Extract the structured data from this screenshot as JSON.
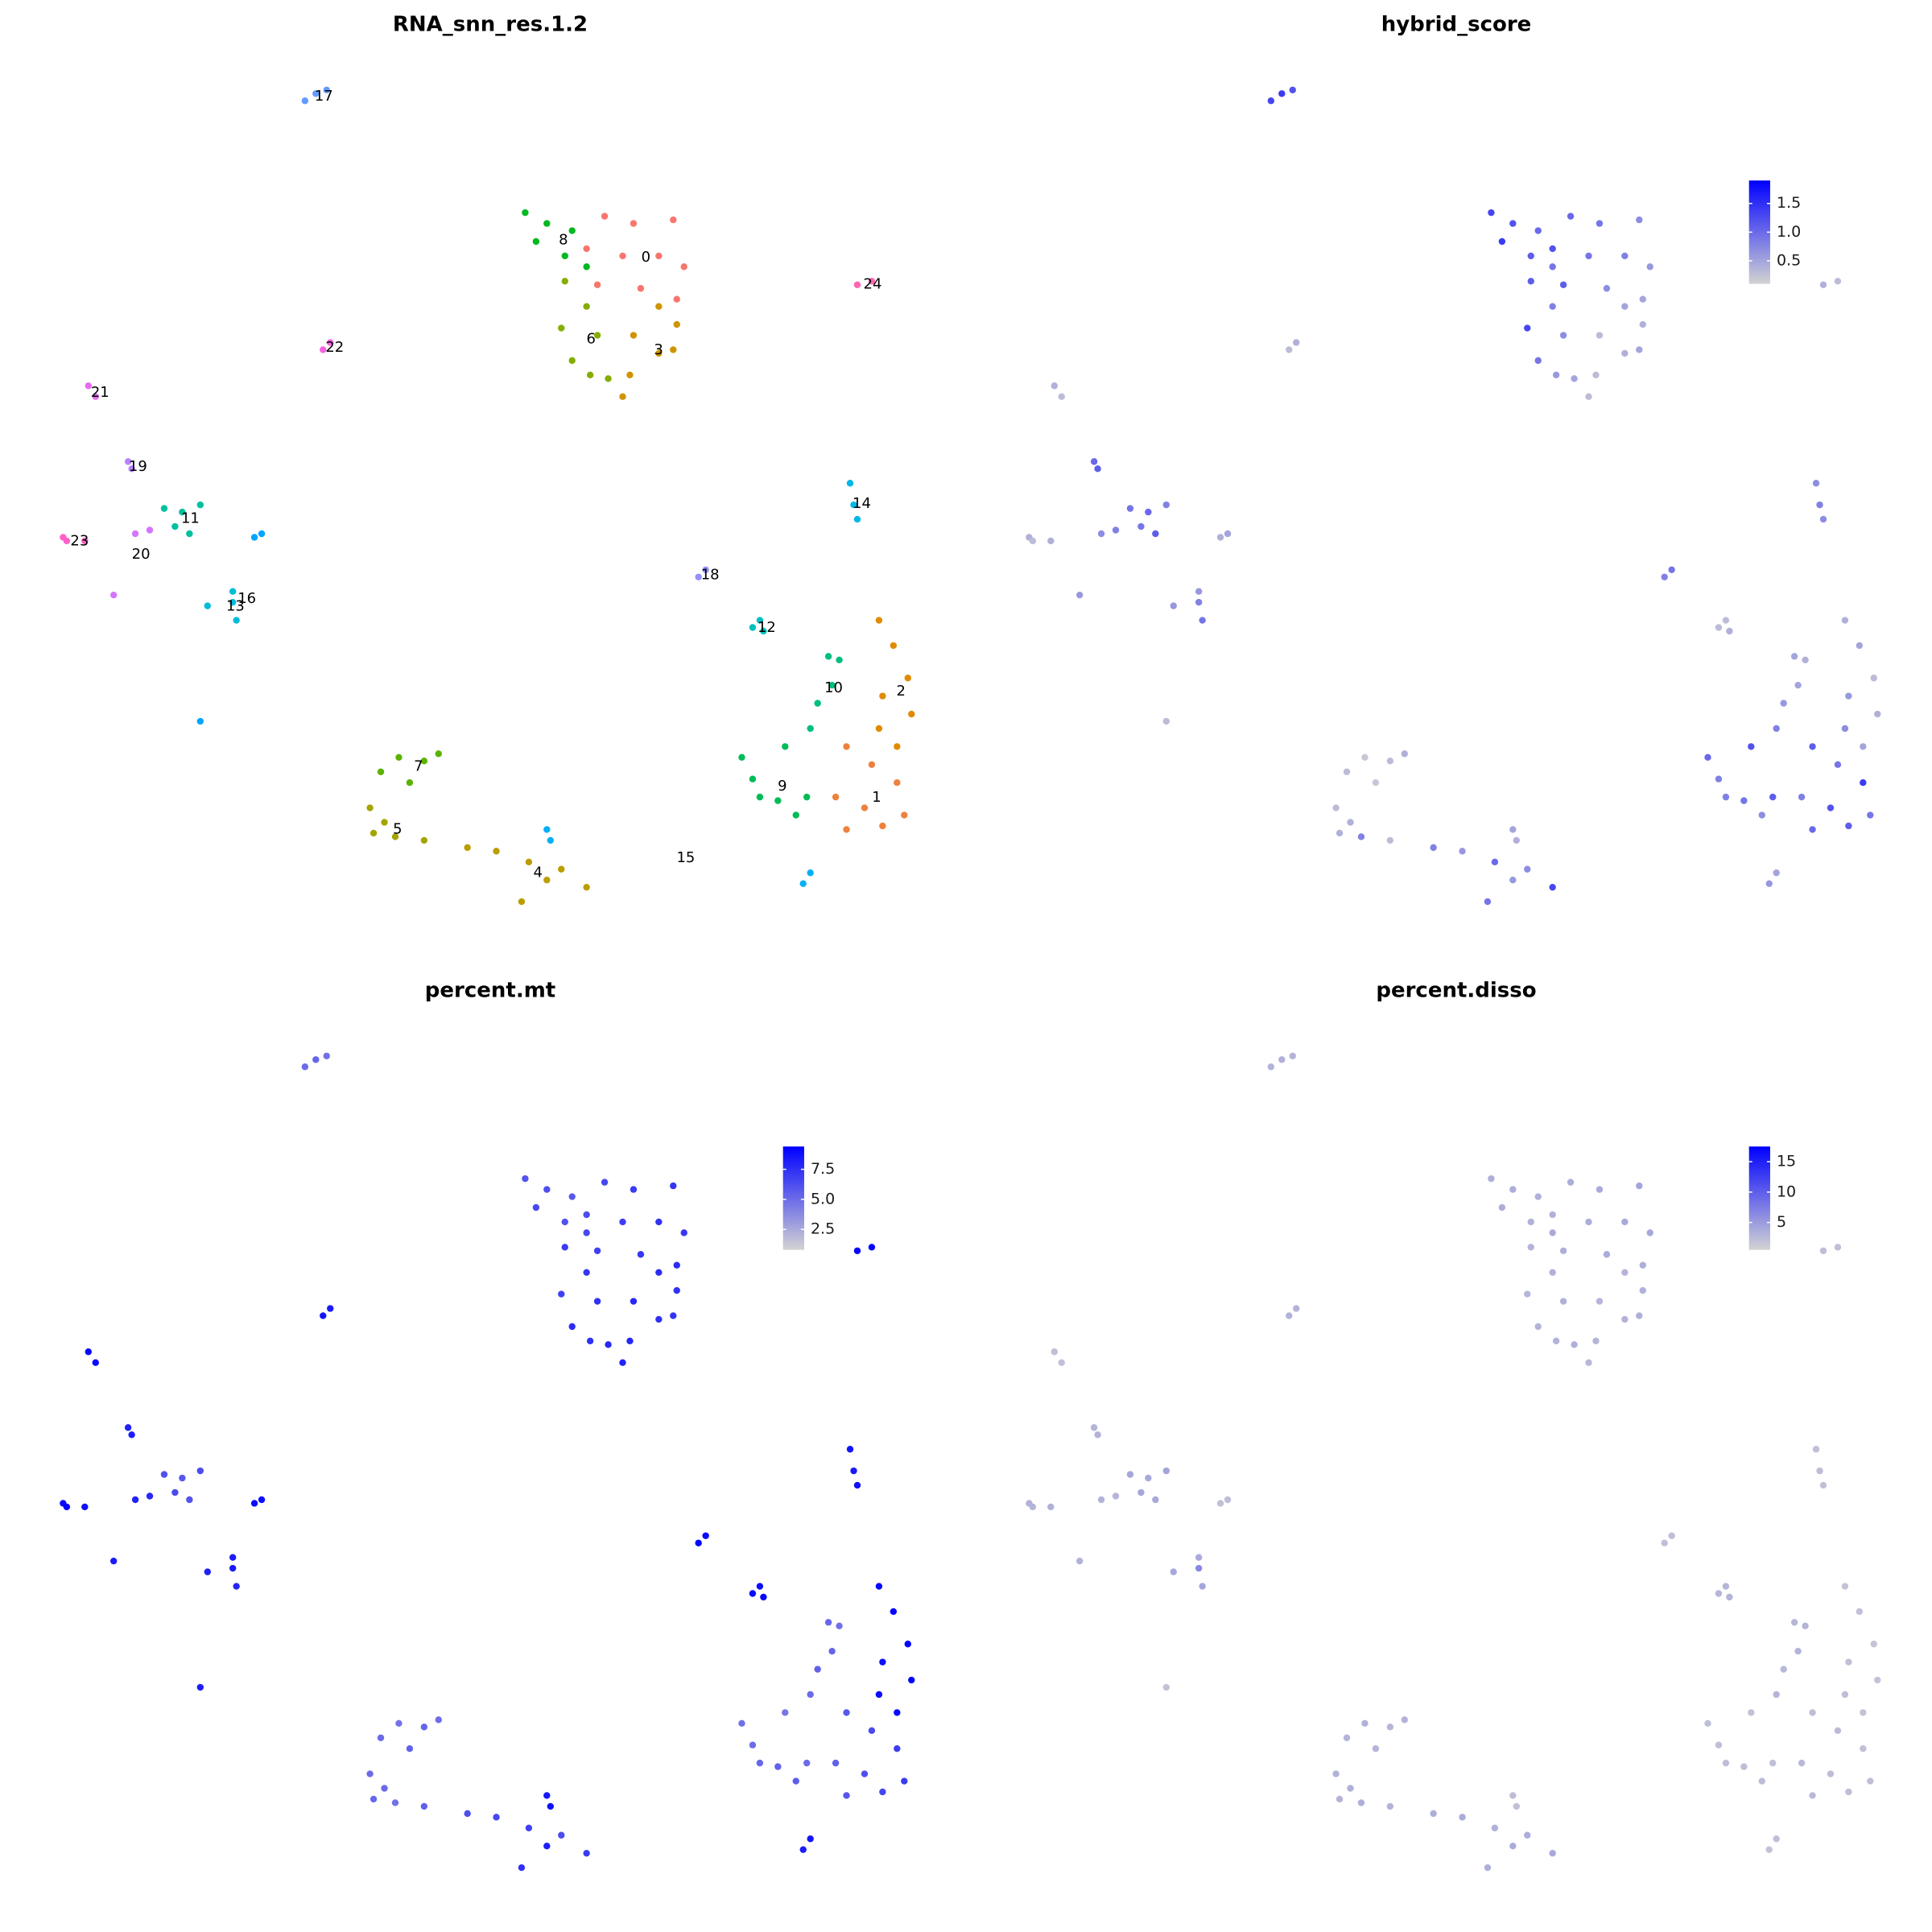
{
  "chart_data": [
    {
      "type": "cluster-scatter",
      "title": "RNA_snn_res.1.2",
      "xlim": [
        -13,
        13
      ],
      "ylim": [
        -12.5,
        12
      ],
      "series": [
        {
          "name": "0",
          "color": "#F8766D",
          "x": [
            3.3,
            4.1,
            5.2,
            2.8,
            3.8,
            4.8,
            5.5,
            3.1,
            4.3,
            5.3
          ],
          "y": [
            7.8,
            7.6,
            7.7,
            6.9,
            6.7,
            6.7,
            6.4,
            5.9,
            5.8,
            5.5
          ]
        },
        {
          "name": "1",
          "color": "#ED813E",
          "x": [
            10.0,
            10.7,
            11.4,
            9.7,
            10.5,
            11.6,
            10.0,
            11.0
          ],
          "y": [
            -6.9,
            -7.4,
            -7.9,
            -8.3,
            -8.6,
            -8.8,
            -9.2,
            -9.1
          ]
        },
        {
          "name": "2",
          "color": "#E08B00",
          "x": [
            10.9,
            11.3,
            11.7,
            11.0,
            11.8,
            10.9,
            11.4
          ],
          "y": [
            -3.4,
            -4.1,
            -5.0,
            -5.5,
            -6.0,
            -6.4,
            -6.9
          ]
        },
        {
          "name": "3",
          "color": "#CF9400",
          "x": [
            4.8,
            5.3,
            4.1,
            4.8,
            4.0,
            5.2,
            3.8
          ],
          "y": [
            5.3,
            4.8,
            4.5,
            4.0,
            3.4,
            4.1,
            2.8
          ]
        },
        {
          "name": "4",
          "color": "#BB9D00",
          "x": [
            -0.5,
            0.3,
            1.2,
            2.1,
            2.8,
            1.0,
            1.7
          ],
          "y": [
            -9.7,
            -9.8,
            -10.1,
            -10.3,
            -10.8,
            -11.2,
            -10.6
          ]
        },
        {
          "name": "5",
          "color": "#A3A500",
          "x": [
            -3.2,
            -3.1,
            -2.5,
            -1.7,
            -2.8
          ],
          "y": [
            -8.6,
            -9.3,
            -9.4,
            -9.5,
            -9.0
          ]
        },
        {
          "name": "6",
          "color": "#85AD00",
          "x": [
            2.2,
            2.8,
            2.1,
            3.1,
            2.4,
            3.4,
            2.9
          ],
          "y": [
            6.0,
            5.3,
            4.7,
            4.5,
            3.8,
            3.3,
            3.4
          ]
        },
        {
          "name": "7",
          "color": "#5BB300",
          "x": [
            -2.9,
            -2.4,
            -1.7,
            -1.3,
            -2.1
          ],
          "y": [
            -7.6,
            -7.2,
            -7.3,
            -7.1,
            -7.9
          ]
        },
        {
          "name": "8",
          "color": "#00B81F",
          "x": [
            1.1,
            1.7,
            2.4,
            1.4,
            2.2,
            2.8
          ],
          "y": [
            7.9,
            7.6,
            7.4,
            7.1,
            6.7,
            6.4
          ]
        },
        {
          "name": "9",
          "color": "#00BC56",
          "x": [
            7.1,
            7.6,
            8.3,
            8.1,
            8.9,
            8.6,
            7.4
          ],
          "y": [
            -7.2,
            -8.3,
            -6.9,
            -8.4,
            -8.3,
            -8.8,
            -7.8
          ]
        },
        {
          "name": "10",
          "color": "#00BF7D",
          "x": [
            9.5,
            9.8,
            9.2,
            9.0,
            9.6
          ],
          "y": [
            -4.4,
            -4.5,
            -5.7,
            -6.4,
            -5.2
          ]
        },
        {
          "name": "11",
          "color": "#00C0A0",
          "x": [
            -8.9,
            -8.4,
            -7.9,
            -8.2,
            -8.6
          ],
          "y": [
            -0.3,
            -0.4,
            -0.2,
            -1.0,
            -0.8
          ]
        },
        {
          "name": "12",
          "color": "#00C0C0",
          "x": [
            7.4,
            7.7,
            7.6
          ],
          "y": [
            -3.6,
            -3.7,
            -3.4
          ]
        },
        {
          "name": "13",
          "color": "#00BCD8",
          "x": [
            -7.7,
            -7.0,
            -6.9,
            -7.0
          ],
          "y": [
            -3.0,
            -2.9,
            -3.4,
            -2.6
          ]
        },
        {
          "name": "14",
          "color": "#00B8E7",
          "x": [
            10.1,
            10.2,
            10.3
          ],
          "y": [
            0.4,
            -0.2,
            -0.6
          ]
        },
        {
          "name": "15",
          "color": "#00B0F6",
          "x": [
            1.7,
            1.8,
            8.8,
            9.0
          ],
          "y": [
            -9.2,
            -9.5,
            -10.7,
            -10.4
          ]
        },
        {
          "name": "16",
          "color": "#00A5FF",
          "x": [
            -6.4,
            -6.2,
            -7.9
          ],
          "y": [
            -1.1,
            -1.0,
            -6.2
          ]
        },
        {
          "name": "17",
          "color": "#619CFF",
          "x": [
            -5.0,
            -4.7,
            -4.4
          ],
          "y": [
            11.0,
            11.2,
            11.3
          ]
        },
        {
          "name": "18",
          "color": "#9590FF",
          "x": [
            5.9,
            6.1
          ],
          "y": [
            -2.2,
            -2.0
          ]
        },
        {
          "name": "19",
          "color": "#B983FF",
          "x": [
            -9.9,
            -9.8
          ],
          "y": [
            1.0,
            0.8
          ]
        },
        {
          "name": "20",
          "color": "#D575FE",
          "x": [
            -9.7,
            -9.3,
            -10.3
          ],
          "y": [
            -1.0,
            -0.9,
            -2.7
          ]
        },
        {
          "name": "21",
          "color": "#E86BF2",
          "x": [
            -11.0,
            -10.8
          ],
          "y": [
            3.1,
            2.8
          ]
        },
        {
          "name": "22",
          "color": "#F763E0",
          "x": [
            -4.5,
            -4.3
          ],
          "y": [
            4.1,
            4.3
          ]
        },
        {
          "name": "23",
          "color": "#FF61C9",
          "x": [
            -11.7,
            -11.6,
            -11.1
          ],
          "y": [
            -1.1,
            -1.2,
            -1.2
          ]
        },
        {
          "name": "24",
          "color": "#FF65AE",
          "x": [
            10.3,
            10.7
          ],
          "y": [
            5.9,
            6.0
          ]
        }
      ]
    },
    {
      "type": "feature-scatter",
      "title": "hybrid_score",
      "low": "#D3D3D3",
      "high": "#0000FF",
      "clim": [
        0.1,
        1.9
      ],
      "ticks": [
        0.5,
        {
          "value": 1,
          "label": "1.0"
        },
        1.5
      ],
      "values": [
        [
          1.0,
          0.9,
          0.7,
          1.2,
          0.9,
          0.8,
          0.6,
          1.1,
          0.7,
          0.5
        ],
        [
          1.1,
          0.9,
          1.4,
          0.8,
          1.2,
          0.9,
          1.0,
          1.1
        ],
        [
          0.4,
          0.5,
          0.3,
          0.6,
          0.4,
          0.7,
          0.5
        ],
        [
          0.5,
          0.4,
          0.3,
          0.4,
          0.3,
          0.5,
          0.3
        ],
        [
          0.8,
          0.6,
          1.0,
          0.7,
          1.3,
          0.9,
          0.6
        ],
        [
          0.3,
          0.4,
          0.8,
          0.3,
          0.4
        ],
        [
          1.1,
          0.8,
          1.3,
          0.7,
          0.9,
          0.5,
          0.6
        ],
        [
          0.3,
          0.2,
          0.3,
          0.4,
          0.2
        ],
        [
          1.3,
          1.2,
          1.0,
          1.4,
          1.1,
          0.9
        ],
        [
          1.0,
          0.8,
          1.2,
          0.9,
          1.1,
          0.7,
          0.8
        ],
        [
          0.5,
          0.4,
          0.6,
          0.8,
          0.5
        ],
        [
          0.9,
          1.0,
          0.8,
          1.1,
          0.9
        ],
        [
          0.3,
          0.4,
          0.3
        ],
        [
          0.6,
          0.8,
          0.9,
          0.6
        ],
        [
          0.7,
          0.8,
          0.7
        ],
        [
          0.5,
          0.4,
          0.6,
          0.5
        ],
        [
          0.4,
          0.5,
          0.3
        ],
        [
          1.3,
          1.4,
          1.2
        ],
        [
          0.8,
          0.9
        ],
        [
          1.0,
          1.1
        ],
        [
          0.7,
          0.8,
          0.6
        ],
        [
          0.4,
          0.3
        ],
        [
          0.3,
          0.4
        ],
        [
          0.4,
          0.3,
          0.4
        ],
        [
          0.4,
          0.3
        ]
      ]
    },
    {
      "type": "feature-scatter",
      "title": "percent.mt",
      "low": "#D3D3D3",
      "high": "#0000FF",
      "clim": [
        0.8,
        9.4
      ],
      "ticks": [
        2.5,
        {
          "value": 5,
          "label": "5.0"
        },
        7.5
      ],
      "values": [
        [
          6.5,
          7.0,
          7.2,
          6.3,
          6.9,
          7.4,
          7.1,
          6.8,
          7.2,
          7.6
        ],
        [
          5.8,
          6.4,
          6.9,
          5.5,
          6.2,
          7.0,
          5.9,
          6.6
        ],
        [
          9.1,
          9.3,
          9.2,
          8.8,
          9.3,
          8.9,
          9.0
        ],
        [
          7.6,
          7.4,
          7.8,
          7.5,
          7.9,
          7.3,
          8.0
        ],
        [
          6.2,
          6.5,
          6.8,
          6.3,
          7.0,
          7.4,
          8.2
        ],
        [
          5.0,
          5.2,
          4.8,
          5.5,
          5.1
        ],
        [
          7.0,
          7.2,
          6.8,
          7.4,
          7.6,
          7.8,
          7.5
        ],
        [
          5.1,
          4.7,
          5.3,
          4.9,
          5.4
        ],
        [
          6.0,
          6.2,
          5.8,
          6.4,
          6.1,
          6.5
        ],
        [
          4.8,
          5.2,
          4.6,
          5.4,
          5.0,
          5.6,
          4.9
        ],
        [
          5.2,
          4.8,
          5.5,
          5.0,
          5.3
        ],
        [
          6.1,
          5.8,
          6.3,
          6.0,
          6.4
        ],
        [
          9.0,
          9.2,
          8.9
        ],
        [
          8.1,
          8.4,
          7.9,
          8.3
        ],
        [
          8.6,
          8.4,
          8.8
        ],
        [
          8.5,
          8.7,
          8.3,
          8.6
        ],
        [
          9.0,
          8.8,
          8.2
        ],
        [
          5.0,
          5.3,
          4.8
        ],
        [
          9.1,
          9.0
        ],
        [
          8.0,
          8.3
        ],
        [
          8.0,
          7.8,
          8.4
        ],
        [
          9.1,
          9.0
        ],
        [
          8.6,
          8.4
        ],
        [
          9.0,
          9.2,
          8.8
        ],
        [
          9.3,
          9.2
        ]
      ]
    },
    {
      "type": "feature-scatter",
      "title": "percent.disso",
      "low": "#D3D3D3",
      "high": "#0000FF",
      "clim": [
        0.5,
        17.5
      ],
      "ticks": [
        5,
        10,
        15
      ],
      "values": [
        [
          3.5,
          3.8,
          4.2,
          3.3,
          3.6,
          3.9,
          4.0,
          3.4,
          3.7,
          3.5
        ],
        [
          2.2,
          2.4,
          2.0,
          2.6,
          2.3,
          2.1,
          2.5,
          2.2
        ],
        [
          1.8,
          2.0,
          1.7,
          2.1,
          1.9,
          2.2,
          1.8
        ],
        [
          3.0,
          3.2,
          2.8,
          3.1,
          2.9,
          3.3,
          2.7
        ],
        [
          3.5,
          3.8,
          3.3,
          3.6,
          4.0,
          3.4,
          3.7
        ],
        [
          3.2,
          3.0,
          3.4,
          3.1,
          3.3
        ],
        [
          3.1,
          3.3,
          2.9,
          3.2,
          3.0,
          3.4,
          3.1
        ],
        [
          3.0,
          3.2,
          2.8,
          3.1,
          2.9
        ],
        [
          3.4,
          3.6,
          3.3,
          3.5,
          3.2,
          3.7
        ],
        [
          2.1,
          2.3,
          1.9,
          2.2,
          2.0,
          2.4,
          2.1
        ],
        [
          2.8,
          3.0,
          2.7,
          2.9,
          3.1
        ],
        [
          4.1,
          3.9,
          4.3,
          4.0,
          4.2
        ],
        [
          2.8,
          3.0,
          2.9
        ],
        [
          4.0,
          6.5,
          4.2,
          3.8
        ],
        [
          2.1,
          2.3,
          2.0
        ],
        [
          2.2,
          2.0,
          1.9,
          2.1
        ],
        [
          2.0,
          2.2,
          1.9
        ],
        [
          3.1,
          3.3,
          3.0
        ],
        [
          2.1,
          2.2
        ],
        [
          3.0,
          3.2
        ],
        [
          3.1,
          2.9,
          3.2
        ],
        [
          2.1,
          2.0
        ],
        [
          3.2,
          3.0
        ],
        [
          3.1,
          2.9,
          3.3
        ],
        [
          2.2,
          2.1
        ]
      ]
    }
  ]
}
